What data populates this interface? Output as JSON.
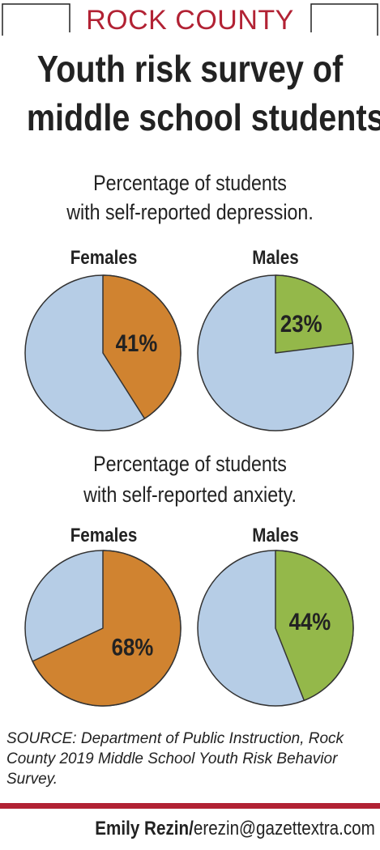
{
  "header": {
    "kicker": "ROCK COUNTY",
    "title_line1": "Youth risk survey of",
    "title_line2": "middle school students"
  },
  "colors": {
    "female": "#d08330",
    "male": "#94b84a",
    "remainder": "#b6cde6",
    "accent": "#b22234",
    "text": "#222222"
  },
  "chart_data": [
    {
      "type": "pie",
      "title": "Percentage of students with self-reported depression.",
      "title_line1": "Percentage of students",
      "title_line2": "with self-reported depression.",
      "pies": [
        {
          "label": "Females",
          "value": 41,
          "value_label": "41%"
        },
        {
          "label": "Males",
          "value": 23,
          "value_label": "23%"
        }
      ]
    },
    {
      "type": "pie",
      "title": "Percentage of students with self-reported anxiety.",
      "title_line1": "Percentage of students",
      "title_line2": "with self-reported anxiety.",
      "pies": [
        {
          "label": "Females",
          "value": 68,
          "value_label": "68%"
        },
        {
          "label": "Males",
          "value": 44,
          "value_label": "44%"
        }
      ]
    }
  ],
  "source": "SOURCE: Department of Public Instruction, Rock County 2019 Middle School Youth Risk Behavior Survey.",
  "byline": {
    "name": "Emily Rezin/",
    "email": "erezin@gazettextra.com"
  }
}
